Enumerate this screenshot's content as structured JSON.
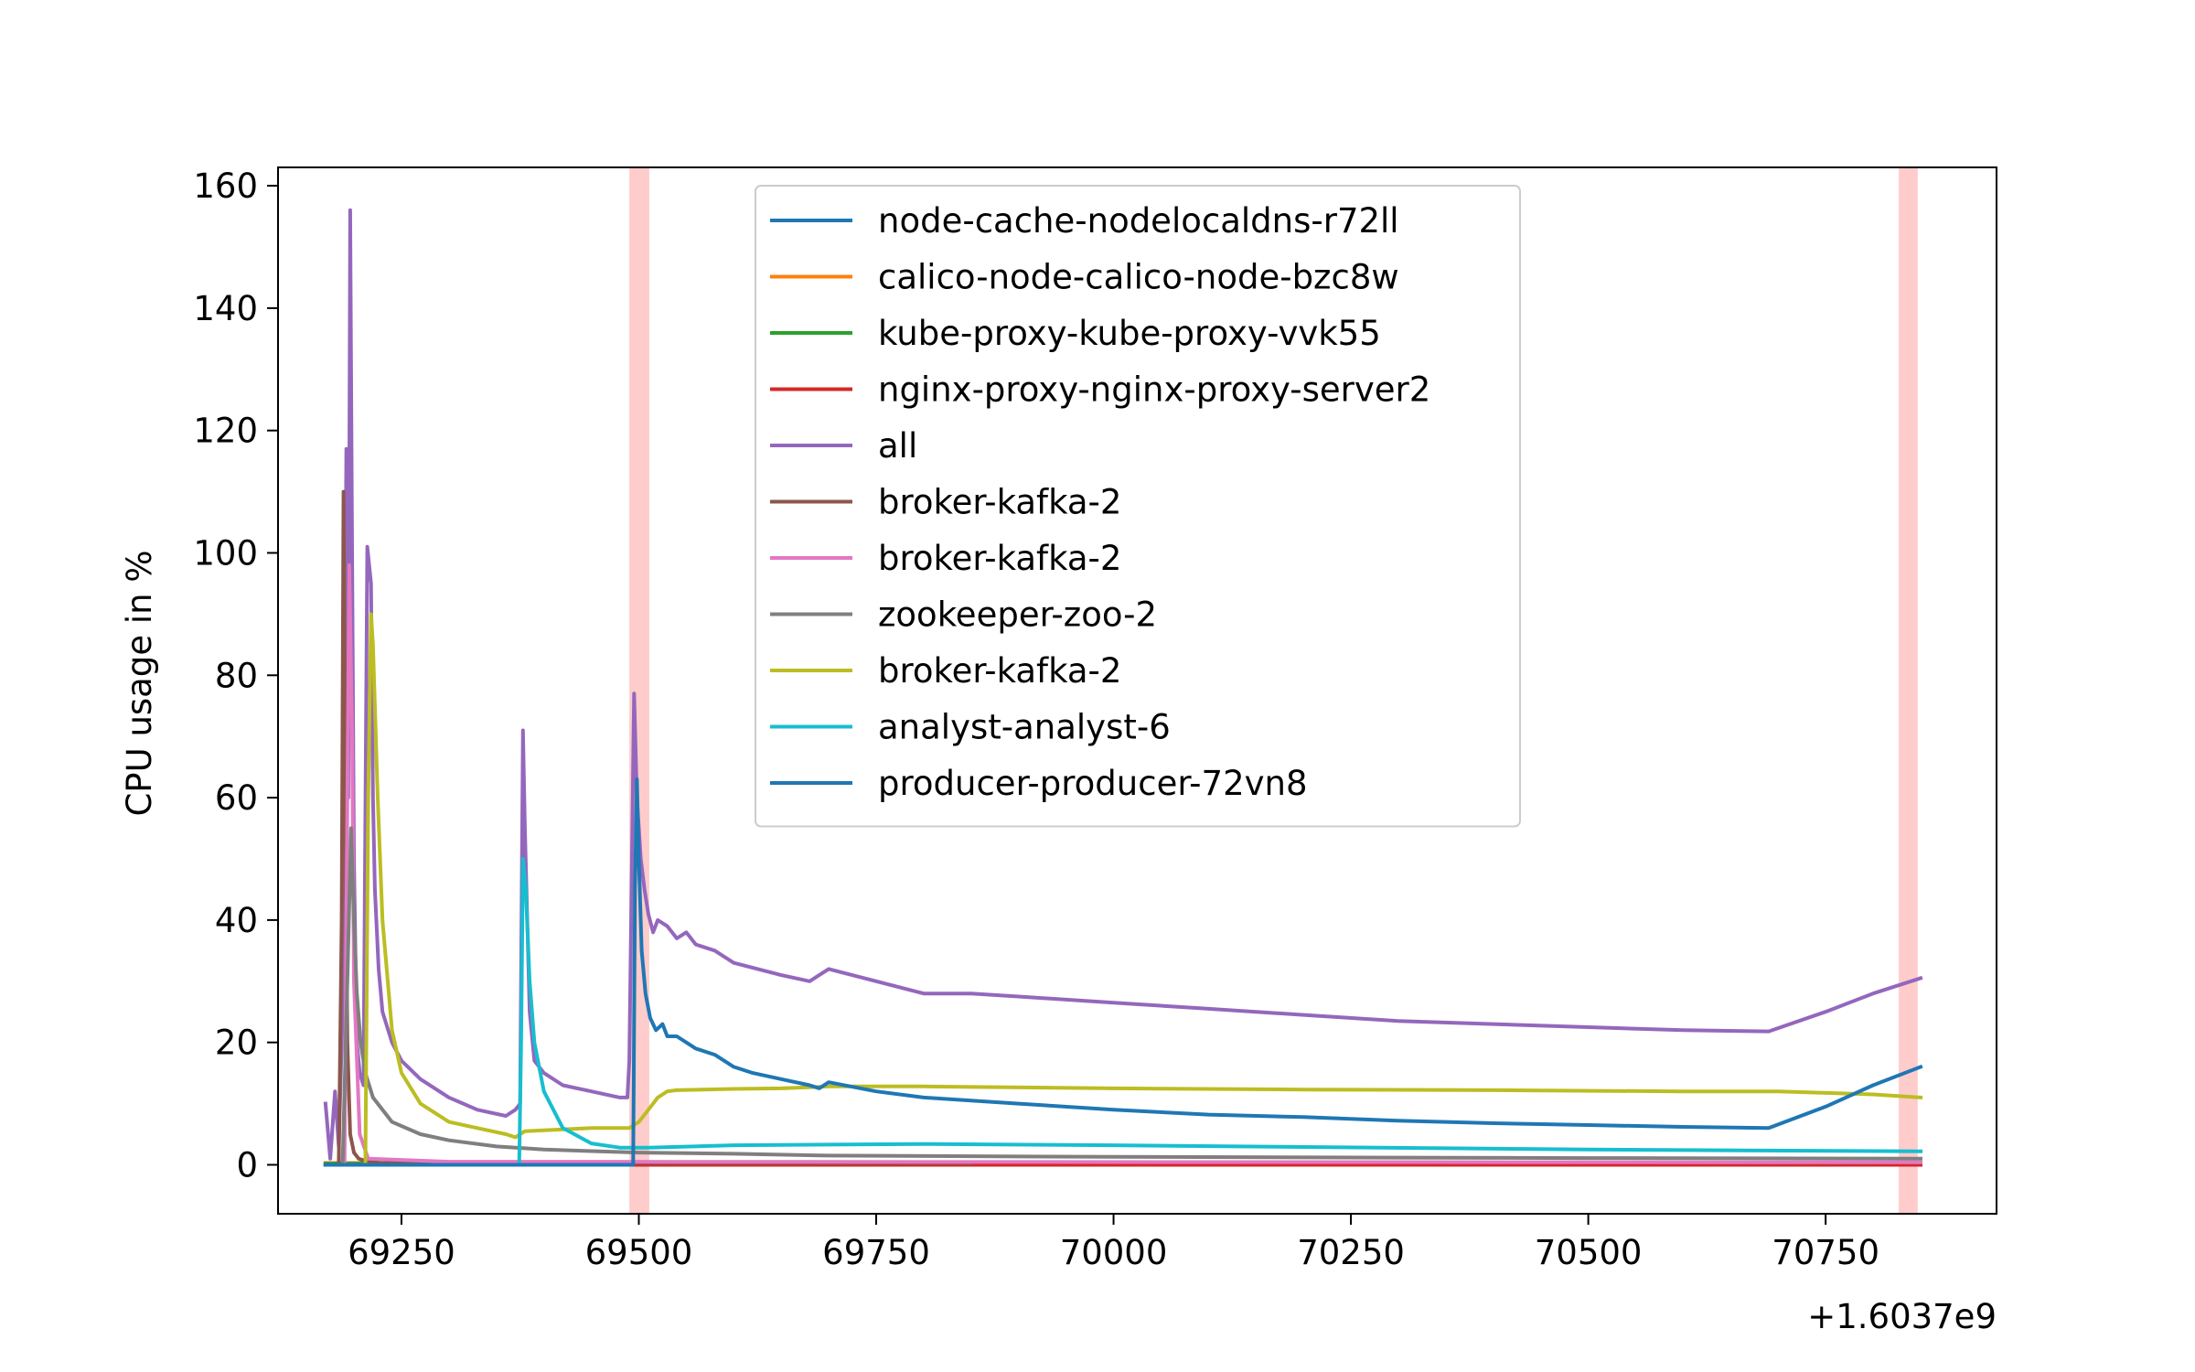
{
  "chart_data": {
    "type": "line",
    "title": "",
    "xlabel": "",
    "ylabel": "CPU usage in %",
    "x_offset_label": "+1.6037e9",
    "xlim": [
      69120,
      70930
    ],
    "ylim": [
      -8,
      163
    ],
    "xticks": [
      {
        "value": 69250,
        "label": "69250"
      },
      {
        "value": 69500,
        "label": "69500"
      },
      {
        "value": 69750,
        "label": "69750"
      },
      {
        "value": 70000,
        "label": "70000"
      },
      {
        "value": 70250,
        "label": "70250"
      },
      {
        "value": 70500,
        "label": "70500"
      },
      {
        "value": 70750,
        "label": "70750"
      }
    ],
    "yticks": [
      {
        "value": 0,
        "label": "0"
      },
      {
        "value": 20,
        "label": "20"
      },
      {
        "value": 40,
        "label": "40"
      },
      {
        "value": 60,
        "label": "60"
      },
      {
        "value": 80,
        "label": "80"
      },
      {
        "value": 100,
        "label": "100"
      },
      {
        "value": 120,
        "label": "120"
      },
      {
        "value": 140,
        "label": "140"
      },
      {
        "value": 160,
        "label": "160"
      }
    ],
    "grid": false,
    "legend_position": "top-center",
    "highlight_bands": [
      {
        "x0": 69490,
        "x1": 69511,
        "color": "#ffcccc"
      },
      {
        "x0": 70827,
        "x1": 70847,
        "color": "#ffcccc"
      }
    ],
    "series": [
      {
        "name": "node-cache-nodelocaldns-r72ll",
        "color": "#1f77b4",
        "x": [
          69170,
          70850
        ],
        "y": [
          0.1,
          0.1
        ]
      },
      {
        "name": "calico-node-calico-node-bzc8w",
        "color": "#ff7f0e",
        "x": [
          69170,
          70850
        ],
        "y": [
          0.3,
          0.3
        ]
      },
      {
        "name": "kube-proxy-kube-proxy-vvk55",
        "color": "#2ca02c",
        "x": [
          69170,
          70850
        ],
        "y": [
          0.2,
          0.2
        ]
      },
      {
        "name": "nginx-proxy-nginx-proxy-server2",
        "color": "#d62728",
        "x": [
          69170,
          70850
        ],
        "y": [
          0.0,
          0.0
        ]
      },
      {
        "name": "all",
        "color": "#9467bd",
        "x": [
          69170,
          69175,
          69180,
          69184,
          69188,
          69192,
          69194,
          69196,
          69198,
          69200,
          69203,
          69206,
          69210,
          69214,
          69218,
          69220,
          69222,
          69226,
          69230,
          69240,
          69250,
          69270,
          69300,
          69330,
          69360,
          69370,
          69375,
          69378,
          69380,
          69385,
          69390,
          69400,
          69420,
          69450,
          69480,
          69488,
          69490,
          69495,
          69498,
          69502,
          69506,
          69510,
          69515,
          69520,
          69530,
          69540,
          69550,
          69560,
          69580,
          69600,
          69650,
          69680,
          69700,
          69750,
          69800,
          69850,
          69900,
          70000,
          70100,
          70200,
          70300,
          70400,
          70500,
          70600,
          70690,
          70750,
          70800,
          70850
        ],
        "y": [
          10,
          1,
          12,
          3,
          25,
          117,
          60,
          156,
          100,
          50,
          20,
          15,
          13,
          101,
          95,
          60,
          45,
          32,
          25,
          20,
          17,
          14,
          11,
          9,
          8,
          9,
          10,
          71,
          55,
          25,
          17,
          15,
          13,
          12,
          11,
          11,
          17,
          77,
          60,
          50,
          45,
          41,
          38,
          40,
          39,
          37,
          38,
          36,
          35,
          33,
          31,
          30,
          32,
          30,
          28,
          28,
          27.5,
          26.5,
          25.5,
          24.5,
          23.5,
          23,
          22.5,
          22,
          21.8,
          25,
          28,
          30.5
        ]
      },
      {
        "name": "broker-kafka-2",
        "color": "#8c564b",
        "x": [
          69170,
          69184,
          69187,
          69189,
          69191,
          69193,
          69196,
          69200,
          69205,
          69215,
          69230,
          69850
        ],
        "y": [
          0,
          0,
          40,
          110,
          60,
          20,
          5,
          2,
          1,
          0.5,
          0.3,
          0.3
        ]
      },
      {
        "name": "broker-kafka-2",
        "color": "#e377c2",
        "x": [
          69170,
          69190,
          69193,
          69195,
          69198,
          69200,
          69206,
          69215,
          69300,
          70850
        ],
        "y": [
          0,
          0,
          60,
          98,
          70,
          30,
          5,
          1,
          0.5,
          0.4
        ]
      },
      {
        "name": "zookeeper-zoo-2",
        "color": "#7f7f7f",
        "x": [
          69170,
          69188,
          69193,
          69197,
          69200,
          69203,
          69207,
          69212,
          69220,
          69240,
          69270,
          69300,
          69350,
          69400,
          69500,
          69600,
          69700,
          70000,
          70500,
          70850
        ],
        "y": [
          0,
          0,
          30,
          55,
          40,
          28,
          20,
          15,
          11,
          7,
          5,
          4,
          3,
          2.5,
          2,
          1.8,
          1.5,
          1.3,
          1.1,
          1.0
        ]
      },
      {
        "name": "broker-kafka-2",
        "color": "#bcbd22",
        "x": [
          69170,
          69212,
          69215,
          69218,
          69220,
          69225,
          69230,
          69240,
          69250,
          69270,
          69300,
          69330,
          69360,
          69370,
          69380,
          69420,
          69450,
          69490,
          69500,
          69510,
          69520,
          69530,
          69540,
          69600,
          69650,
          69700,
          69800,
          70000,
          70200,
          70400,
          70600,
          70700,
          70800,
          70850
        ],
        "y": [
          0,
          0,
          60,
          90,
          85,
          60,
          40,
          22,
          15,
          10,
          7,
          6,
          5,
          4.5,
          5.5,
          5.8,
          6,
          6,
          7,
          9,
          11,
          12,
          12.2,
          12.4,
          12.5,
          12.8,
          12.8,
          12.5,
          12.3,
          12.2,
          12,
          12,
          11.5,
          11
        ]
      },
      {
        "name": "analyst-analyst-6",
        "color": "#17becf",
        "x": [
          69170,
          69374,
          69376,
          69378,
          69381,
          69385,
          69390,
          69400,
          69420,
          69450,
          69480,
          69510,
          69600,
          69700,
          69800,
          70000,
          70500,
          70850
        ],
        "y": [
          0,
          0,
          20,
          50,
          45,
          30,
          20,
          12,
          6,
          3.5,
          2.8,
          2.8,
          3.2,
          3.3,
          3.4,
          3.2,
          2.5,
          2.2
        ]
      },
      {
        "name": "producer-producer-72vn8",
        "color": "#1f77b4",
        "x": [
          69170,
          69494,
          69496,
          69498,
          69500,
          69503,
          69507,
          69512,
          69518,
          69525,
          69530,
          69540,
          69550,
          69560,
          69580,
          69600,
          69620,
          69650,
          69680,
          69690,
          69700,
          69750,
          69800,
          69850,
          69900,
          70000,
          70100,
          70200,
          70300,
          70400,
          70500,
          70600,
          70690,
          70750,
          70800,
          70850
        ],
        "y": [
          0,
          0,
          45,
          63,
          50,
          35,
          28,
          24,
          22,
          23,
          21,
          21,
          20,
          19,
          18,
          16,
          15,
          14,
          13,
          12.5,
          13.5,
          12,
          11,
          10.5,
          10,
          9,
          8.2,
          7.8,
          7.2,
          6.8,
          6.5,
          6.2,
          6,
          9.5,
          13,
          16
        ]
      }
    ]
  }
}
